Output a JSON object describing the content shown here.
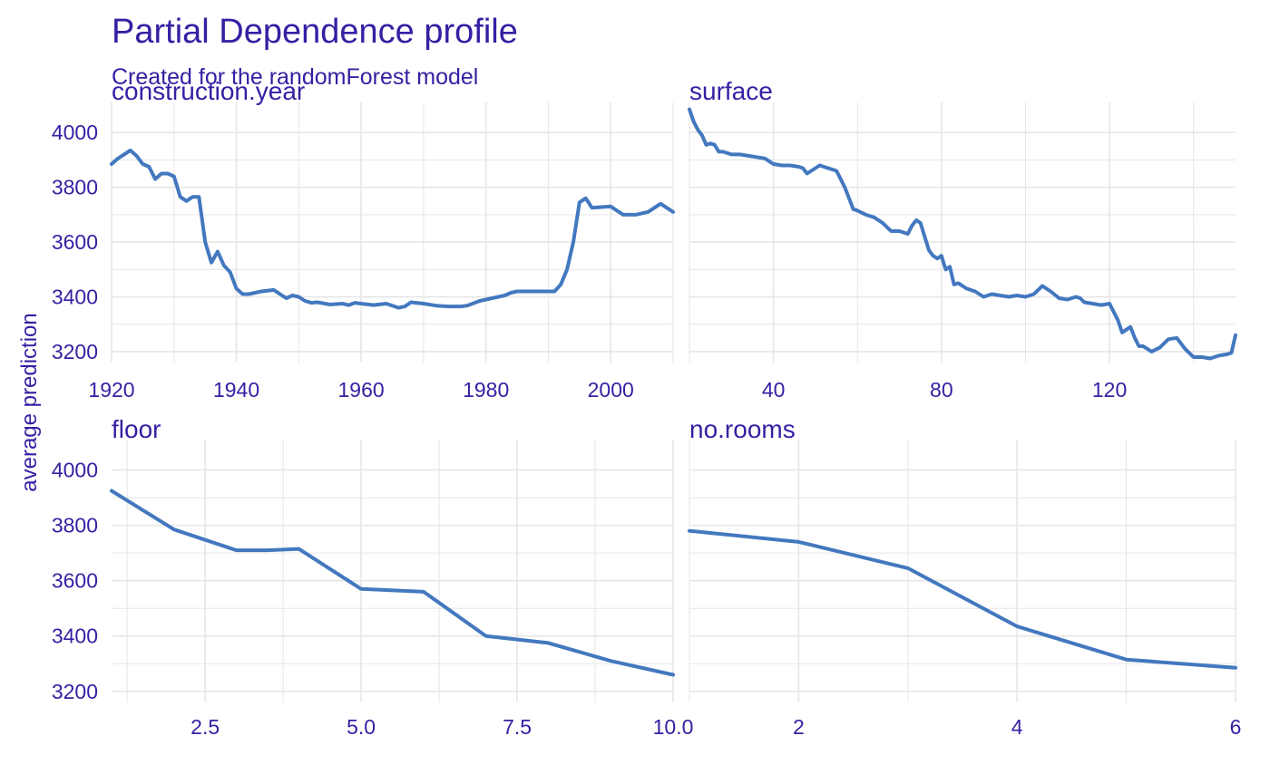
{
  "title": "Partial Dependence profile",
  "subtitle": "Created for the randomForest model",
  "ylabel": "average prediction",
  "colors": {
    "text": "#371ea3",
    "line": "#4378bf",
    "grid": "#e6e6e6"
  },
  "chart_data": [
    {
      "type": "line",
      "panel": "construction.year",
      "xlim": [
        1920,
        2010
      ],
      "ylim": [
        3160,
        4110
      ],
      "xticks": [
        1920,
        1940,
        1960,
        1980,
        2000
      ],
      "yticks": [
        3200,
        3400,
        3600,
        3800,
        4000
      ],
      "x": [
        1920,
        1921,
        1922,
        1923,
        1924,
        1925,
        1926,
        1927,
        1928,
        1929,
        1930,
        1931,
        1932,
        1933,
        1934,
        1935,
        1936,
        1937,
        1938,
        1939,
        1940,
        1941,
        1942,
        1944,
        1946,
        1947,
        1948,
        1949,
        1950,
        1951,
        1952,
        1953,
        1955,
        1957,
        1958,
        1959,
        1960,
        1962,
        1964,
        1966,
        1967,
        1968,
        1970,
        1972,
        1974,
        1976,
        1977,
        1979,
        1981,
        1983,
        1984,
        1985,
        1987,
        1989,
        1990,
        1991,
        1992,
        1993,
        1994,
        1995,
        1996,
        1997,
        2000,
        2002,
        2004,
        2006,
        2008,
        2009,
        2010
      ],
      "y": [
        3885,
        3905,
        3920,
        3935,
        3915,
        3885,
        3875,
        3830,
        3850,
        3850,
        3840,
        3765,
        3750,
        3765,
        3765,
        3600,
        3525,
        3565,
        3515,
        3490,
        3430,
        3410,
        3410,
        3420,
        3425,
        3410,
        3395,
        3405,
        3400,
        3385,
        3378,
        3380,
        3372,
        3375,
        3370,
        3378,
        3375,
        3370,
        3375,
        3360,
        3365,
        3380,
        3375,
        3368,
        3365,
        3365,
        3368,
        3385,
        3395,
        3405,
        3415,
        3420,
        3420,
        3420,
        3420,
        3420,
        3445,
        3500,
        3600,
        3745,
        3760,
        3725,
        3730,
        3700,
        3700,
        3710,
        3740,
        3725,
        3710
      ]
    },
    {
      "type": "line",
      "panel": "surface",
      "xlim": [
        20,
        150
      ],
      "ylim": [
        3160,
        4110
      ],
      "xticks": [
        40,
        80,
        120
      ],
      "yticks": [
        3200,
        3400,
        3600,
        3800,
        4000
      ],
      "x": [
        20,
        21,
        22,
        23,
        24,
        25,
        26,
        27,
        28,
        30,
        32,
        34,
        36,
        38,
        40,
        42,
        44,
        46,
        47,
        48,
        50,
        51,
        52,
        53,
        55,
        57,
        59,
        60,
        62,
        64,
        66,
        68,
        70,
        71,
        72,
        73,
        74,
        75,
        76,
        77,
        78,
        79,
        80,
        81,
        82,
        83,
        84,
        86,
        88,
        90,
        92,
        94,
        96,
        98,
        100,
        102,
        104,
        106,
        108,
        110,
        112,
        113,
        114,
        116,
        118,
        120,
        122,
        123,
        125,
        126,
        127,
        128,
        130,
        132,
        134,
        136,
        138,
        140,
        142,
        144,
        146,
        148,
        149,
        150
      ],
      "y": [
        4085,
        4040,
        4010,
        3990,
        3955,
        3960,
        3955,
        3930,
        3930,
        3920,
        3920,
        3915,
        3910,
        3905,
        3885,
        3880,
        3880,
        3875,
        3870,
        3850,
        3870,
        3880,
        3875,
        3870,
        3860,
        3800,
        3720,
        3715,
        3700,
        3690,
        3670,
        3640,
        3640,
        3635,
        3630,
        3660,
        3680,
        3670,
        3620,
        3570,
        3550,
        3540,
        3550,
        3500,
        3510,
        3445,
        3450,
        3430,
        3420,
        3400,
        3410,
        3405,
        3400,
        3405,
        3400,
        3410,
        3440,
        3420,
        3395,
        3390,
        3400,
        3395,
        3380,
        3375,
        3370,
        3375,
        3315,
        3270,
        3290,
        3250,
        3220,
        3220,
        3200,
        3215,
        3245,
        3250,
        3210,
        3180,
        3180,
        3175,
        3185,
        3190,
        3195,
        3260
      ]
    },
    {
      "type": "line",
      "panel": "floor",
      "xlim": [
        1,
        10
      ],
      "ylim": [
        3160,
        4110
      ],
      "xticks": [
        2.5,
        5.0,
        7.5,
        10.0
      ],
      "xtick_labels": [
        "2.5",
        "5.0",
        "7.5",
        "10.0"
      ],
      "yticks": [
        3200,
        3400,
        3600,
        3800,
        4000
      ],
      "x": [
        1,
        2,
        3,
        3.5,
        4,
        5,
        6,
        7,
        8,
        9,
        10
      ],
      "y": [
        3925,
        3785,
        3710,
        3710,
        3715,
        3570,
        3560,
        3400,
        3375,
        3310,
        3260
      ]
    },
    {
      "type": "line",
      "panel": "no.rooms",
      "xlim": [
        1,
        6
      ],
      "ylim": [
        3160,
        4110
      ],
      "xticks": [
        2,
        4,
        6
      ],
      "yticks": [
        3200,
        3400,
        3600,
        3800,
        4000
      ],
      "x": [
        1,
        2,
        3,
        4,
        5,
        6
      ],
      "y": [
        3780,
        3740,
        3645,
        3435,
        3315,
        3285
      ]
    }
  ]
}
